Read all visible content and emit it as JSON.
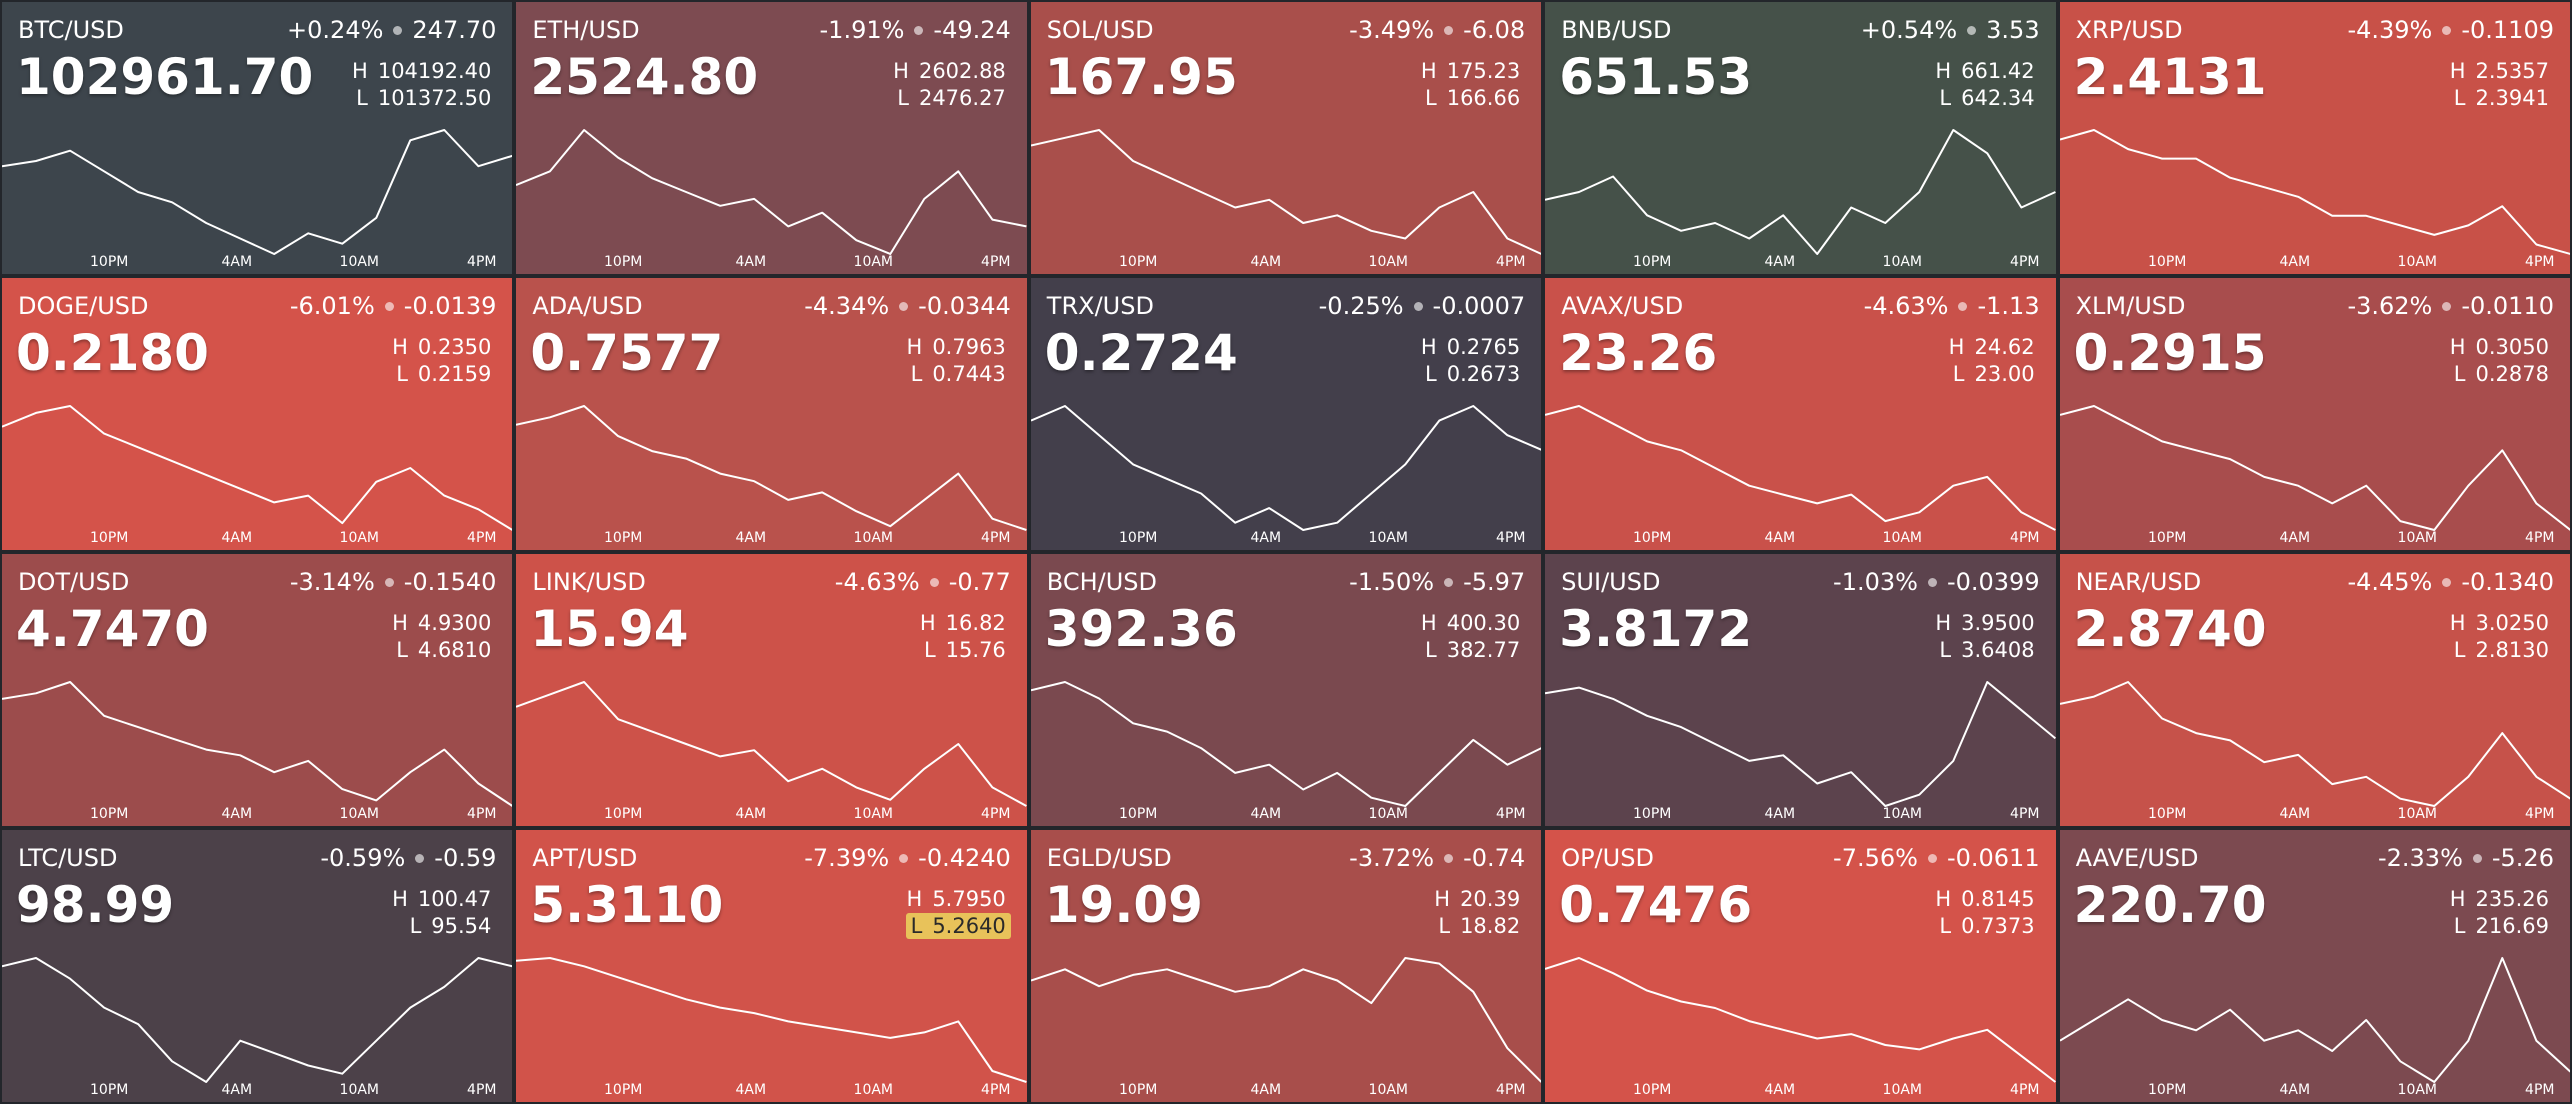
{
  "time_ticks": [
    "10PM",
    "4AM",
    "10AM",
    "4PM"
  ],
  "high_label": "H",
  "low_label": "L",
  "tiles": [
    {
      "symbol": "BTC/USD",
      "change_pct": "+0.24%",
      "change": "247.70",
      "price": "102961.70",
      "high": "104192.40",
      "low": "101372.50",
      "color": "#3d454c",
      "spark": [
        103300,
        103400,
        103600,
        103200,
        102800,
        102600,
        102200,
        101900,
        101600,
        102000,
        101800,
        102300,
        103800,
        104000,
        103300,
        103500
      ]
    },
    {
      "symbol": "ETH/USD",
      "change_pct": "-1.91%",
      "change": "-49.24",
      "price": "2524.80",
      "high": "2602.88",
      "low": "2476.27",
      "color": "#7d4b51",
      "spark": [
        2550,
        2560,
        2590,
        2570,
        2555,
        2545,
        2535,
        2540,
        2520,
        2530,
        2510,
        2500,
        2540,
        2560,
        2525,
        2520
      ]
    },
    {
      "symbol": "SOL/USD",
      "change_pct": "-3.49%",
      "change": "-6.08",
      "price": "167.95",
      "high": "175.23",
      "low": "166.66",
      "color": "#a94f4b",
      "spark": [
        174,
        174.5,
        175,
        173,
        172,
        171,
        170,
        170.5,
        169,
        169.5,
        168.5,
        168,
        170,
        171,
        168,
        167
      ]
    },
    {
      "symbol": "BNB/USD",
      "change_pct": "+0.54%",
      "change": "3.53",
      "price": "651.53",
      "high": "661.42",
      "low": "642.34",
      "color": "#455149",
      "spark": [
        650,
        651,
        653,
        648,
        646,
        647,
        645,
        648,
        643,
        649,
        647,
        651,
        659,
        656,
        649,
        651
      ]
    },
    {
      "symbol": "XRP/USD",
      "change_pct": "-4.39%",
      "change": "-0.1109",
      "price": "2.4131",
      "high": "2.5357",
      "low": "2.3941",
      "color": "#c85148",
      "spark": [
        2.52,
        2.53,
        2.51,
        2.5,
        2.5,
        2.48,
        2.47,
        2.46,
        2.44,
        2.44,
        2.43,
        2.42,
        2.43,
        2.45,
        2.41,
        2.4
      ]
    },
    {
      "symbol": "DOGE/USD",
      "change_pct": "-6.01%",
      "change": "-0.0139",
      "price": "0.2180",
      "high": "0.2350",
      "low": "0.2159",
      "color": "#d4534a",
      "spark": [
        0.231,
        0.233,
        0.234,
        0.23,
        0.228,
        0.226,
        0.224,
        0.222,
        0.22,
        0.221,
        0.217,
        0.223,
        0.225,
        0.221,
        0.219,
        0.216
      ]
    },
    {
      "symbol": "ADA/USD",
      "change_pct": "-4.34%",
      "change": "-0.0344",
      "price": "0.7577",
      "high": "0.7963",
      "low": "0.7443",
      "color": "#b9524c",
      "spark": [
        0.785,
        0.787,
        0.79,
        0.782,
        0.778,
        0.776,
        0.772,
        0.77,
        0.765,
        0.767,
        0.762,
        0.758,
        0.765,
        0.772,
        0.76,
        0.757
      ]
    },
    {
      "symbol": "TRX/USD",
      "change_pct": "-0.25%",
      "change": "-0.0007",
      "price": "0.2724",
      "high": "0.2765",
      "low": "0.2673",
      "color": "#433f4b",
      "spark": [
        0.275,
        0.276,
        0.274,
        0.272,
        0.271,
        0.27,
        0.268,
        0.269,
        0.2675,
        0.268,
        0.27,
        0.272,
        0.275,
        0.276,
        0.274,
        0.273
      ]
    },
    {
      "symbol": "AVAX/USD",
      "change_pct": "-4.63%",
      "change": "-1.13",
      "price": "23.26",
      "high": "24.62",
      "low": "23.00",
      "color": "#c9514a",
      "spark": [
        24.4,
        24.5,
        24.3,
        24.1,
        24,
        23.8,
        23.6,
        23.5,
        23.4,
        23.5,
        23.2,
        23.3,
        23.6,
        23.7,
        23.3,
        23.1
      ]
    },
    {
      "symbol": "XLM/USD",
      "change_pct": "-3.62%",
      "change": "-0.0110",
      "price": "0.2915",
      "high": "0.3050",
      "low": "0.2878",
      "color": "#a84d4d",
      "spark": [
        0.302,
        0.303,
        0.301,
        0.299,
        0.298,
        0.297,
        0.295,
        0.294,
        0.292,
        0.294,
        0.29,
        0.289,
        0.294,
        0.298,
        0.292,
        0.289
      ]
    },
    {
      "symbol": "DOT/USD",
      "change_pct": "-3.14%",
      "change": "-0.1540",
      "price": "4.7470",
      "high": "4.9300",
      "low": "4.6810",
      "color": "#9c4c4c",
      "spark": [
        4.89,
        4.9,
        4.92,
        4.86,
        4.84,
        4.82,
        4.8,
        4.79,
        4.76,
        4.78,
        4.73,
        4.71,
        4.76,
        4.8,
        4.74,
        4.7
      ]
    },
    {
      "symbol": "LINK/USD",
      "change_pct": "-4.63%",
      "change": "-0.77",
      "price": "15.94",
      "high": "16.82",
      "low": "15.76",
      "color": "#cd5249",
      "spark": [
        16.6,
        16.7,
        16.8,
        16.5,
        16.4,
        16.3,
        16.2,
        16.25,
        16,
        16.1,
        15.95,
        15.85,
        16.1,
        16.3,
        15.95,
        15.8
      ]
    },
    {
      "symbol": "BCH/USD",
      "change_pct": "-1.50%",
      "change": "-5.97",
      "price": "392.36",
      "high": "400.30",
      "low": "382.77",
      "color": "#7a494f",
      "spark": [
        398,
        399,
        397,
        394,
        393,
        391,
        388,
        389,
        386,
        388,
        385,
        384,
        388,
        392,
        389,
        391
      ]
    },
    {
      "symbol": "SUI/USD",
      "change_pct": "-1.03%",
      "change": "-0.0399",
      "price": "3.8172",
      "high": "3.9500",
      "low": "3.6408",
      "color": "#5c434d",
      "spark": [
        3.88,
        3.89,
        3.87,
        3.84,
        3.82,
        3.79,
        3.76,
        3.77,
        3.72,
        3.74,
        3.68,
        3.7,
        3.76,
        3.9,
        3.85,
        3.8
      ]
    },
    {
      "symbol": "NEAR/USD",
      "change_pct": "-4.45%",
      "change": "-0.1340",
      "price": "2.8740",
      "high": "3.0250",
      "low": "2.8130",
      "color": "#c6524a",
      "spark": [
        2.97,
        2.98,
        3,
        2.95,
        2.93,
        2.92,
        2.89,
        2.9,
        2.86,
        2.87,
        2.84,
        2.83,
        2.87,
        2.93,
        2.87,
        2.84
      ]
    },
    {
      "symbol": "LTC/USD",
      "change_pct": "-0.59%",
      "change": "-0.59",
      "price": "98.99",
      "high": "100.47",
      "low": "95.54",
      "color": "#4c4149",
      "spark": [
        98.8,
        99,
        98.5,
        97.8,
        97.4,
        96.5,
        96,
        97,
        96.7,
        96.4,
        96.2,
        97,
        97.8,
        98.3,
        99,
        98.8
      ]
    },
    {
      "symbol": "APT/USD",
      "change_pct": "-7.39%",
      "change": "-0.4240",
      "price": "5.3110",
      "high": "5.7950",
      "low": "5.2640",
      "color": "#d1534a",
      "highlight": "low",
      "spark": [
        5.72,
        5.73,
        5.7,
        5.66,
        5.62,
        5.58,
        5.55,
        5.53,
        5.5,
        5.48,
        5.46,
        5.44,
        5.46,
        5.5,
        5.32,
        5.28
      ]
    },
    {
      "symbol": "EGLD/USD",
      "change_pct": "-3.72%",
      "change": "-0.74",
      "price": "19.09",
      "high": "20.39",
      "low": "18.82",
      "color": "#a84e4b",
      "spark": [
        20,
        20.1,
        19.95,
        20.05,
        20.1,
        20,
        19.9,
        19.95,
        20.1,
        20,
        19.8,
        20.2,
        20.15,
        19.9,
        19.4,
        19.1
      ]
    },
    {
      "symbol": "OP/USD",
      "change_pct": "-7.56%",
      "change": "-0.0611",
      "price": "0.7476",
      "high": "0.8145",
      "low": "0.7373",
      "color": "#d4534a",
      "spark": [
        0.8,
        0.805,
        0.798,
        0.79,
        0.785,
        0.782,
        0.776,
        0.772,
        0.768,
        0.77,
        0.765,
        0.763,
        0.768,
        0.772,
        0.76,
        0.748
      ]
    },
    {
      "symbol": "AAVE/USD",
      "change_pct": "-2.33%",
      "change": "-5.26",
      "price": "220.70",
      "high": "235.26",
      "low": "216.69",
      "color": "#7c4a50",
      "spark": [
        224,
        226,
        228,
        226,
        225,
        227,
        224,
        225,
        223,
        226,
        222,
        220,
        224,
        232,
        224,
        221
      ]
    }
  ]
}
